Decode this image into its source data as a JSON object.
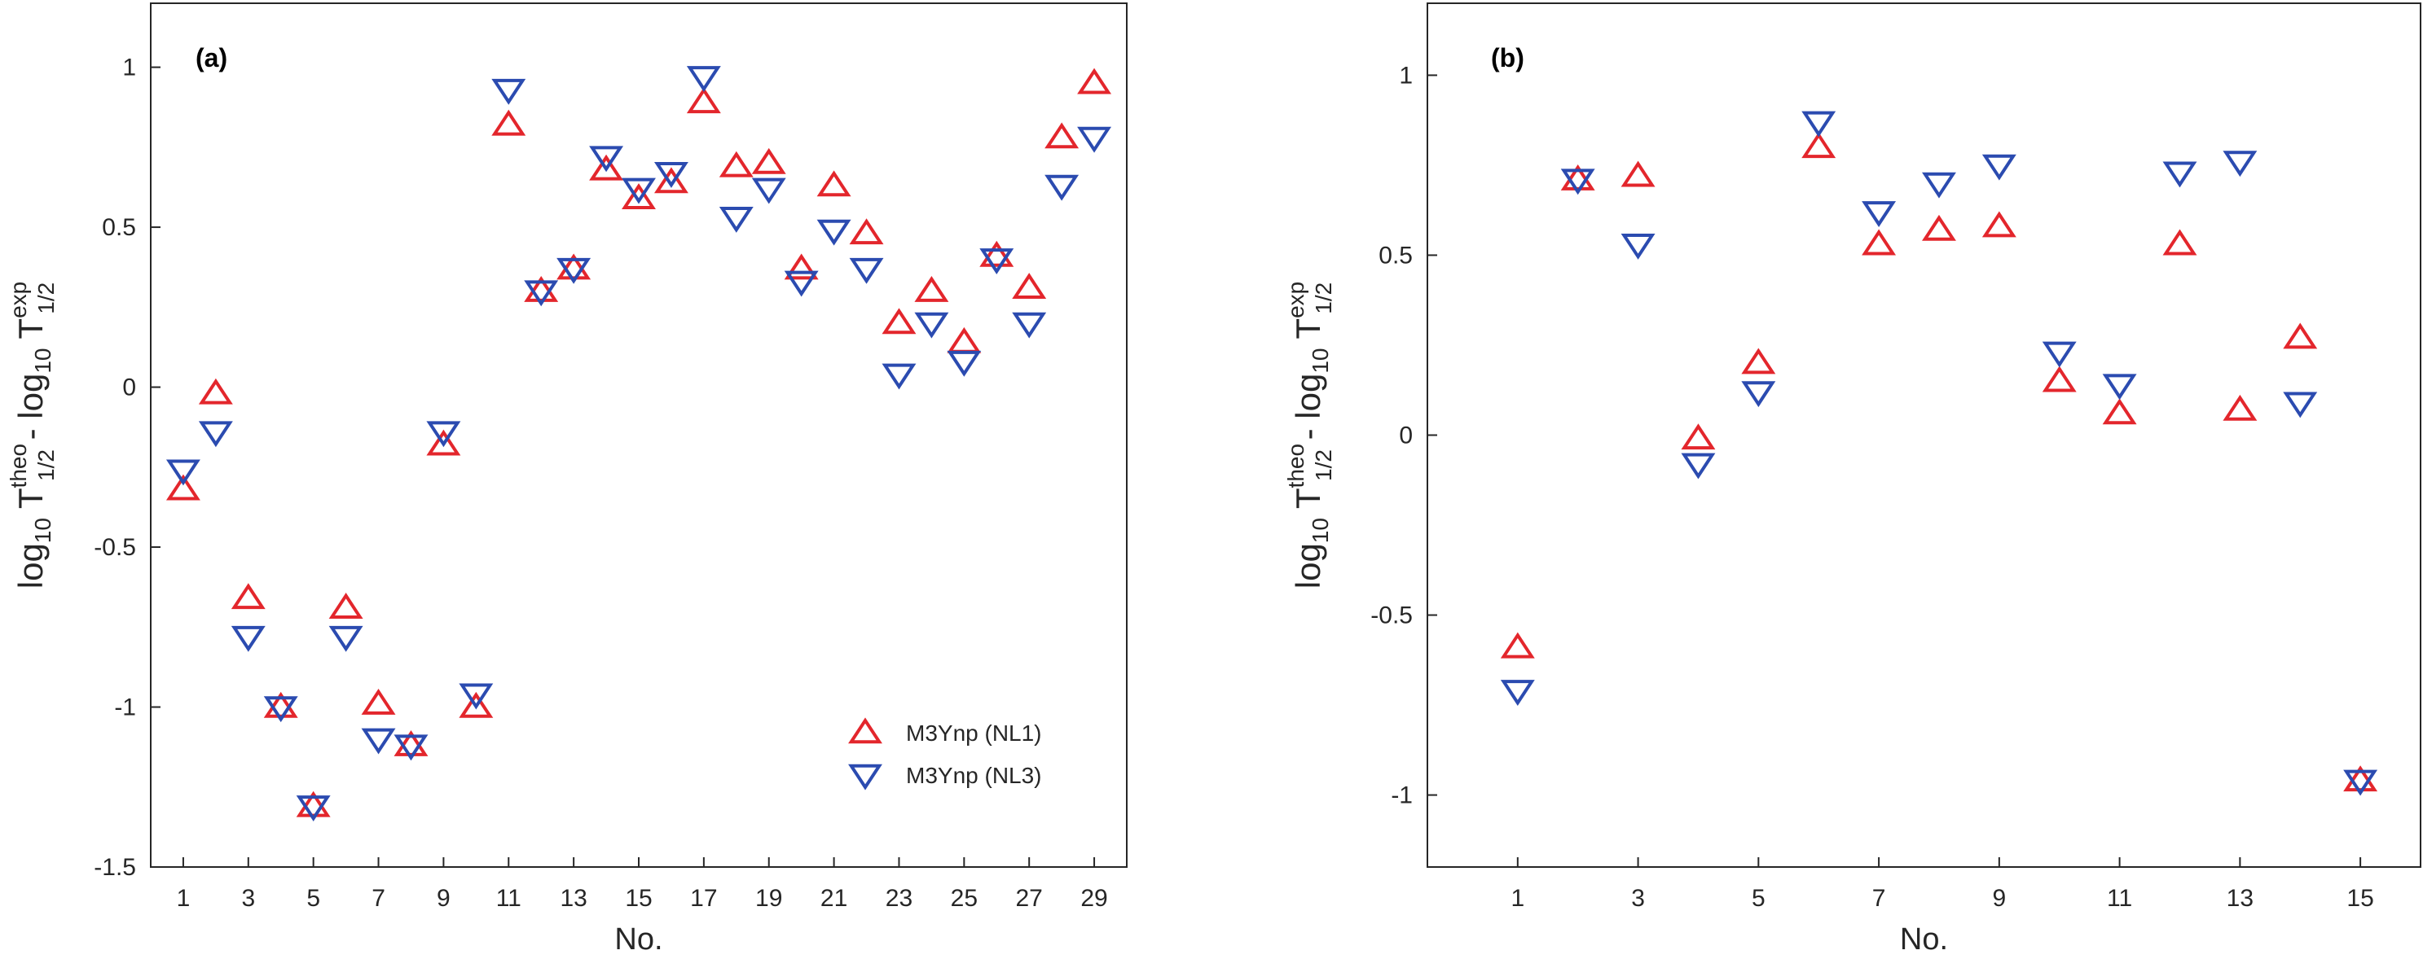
{
  "chart_data": [
    {
      "type": "scatter",
      "panel_label": "(a)",
      "xlabel": "No.",
      "ylabel": {
        "prefix": "log",
        "log_sub": "10",
        "t": "T",
        "sup_theo": "theo",
        "sub": "1/2",
        "minus": " - ",
        "sup_exp": "exp"
      },
      "xlim": [
        0,
        30
      ],
      "ylim": [
        -1.5,
        1.2
      ],
      "xticks": [
        1,
        3,
        5,
        7,
        9,
        11,
        13,
        15,
        17,
        19,
        21,
        23,
        25,
        27,
        29
      ],
      "yticks": [
        -1.5,
        -1,
        -0.5,
        0,
        0.5,
        1
      ],
      "ytick_labels": [
        "-1.5",
        "-1",
        "-0.5",
        "0",
        "0.5",
        "1"
      ],
      "legend": {
        "location": "bottom-right",
        "entries": [
          "M3Ynp (NL1)",
          "M3Ynp (NL3)"
        ]
      },
      "series": [
        {
          "name": "M3Ynp (NL1)",
          "marker": "triangle-up",
          "color": "#e3262c",
          "x": [
            1,
            2,
            3,
            4,
            5,
            6,
            7,
            8,
            9,
            10,
            11,
            12,
            13,
            14,
            15,
            16,
            17,
            18,
            19,
            20,
            21,
            22,
            23,
            24,
            25,
            26,
            27,
            28,
            29
          ],
          "y": [
            -0.32,
            -0.02,
            -0.66,
            -1.0,
            -1.31,
            -0.69,
            -0.99,
            -1.12,
            -0.18,
            -1.0,
            0.82,
            0.3,
            0.37,
            0.68,
            0.59,
            0.64,
            0.89,
            0.69,
            0.7,
            0.37,
            0.63,
            0.48,
            0.2,
            0.3,
            0.14,
            0.41,
            0.31,
            0.78,
            0.95
          ]
        },
        {
          "name": "M3Ynp (NL3)",
          "marker": "triangle-down",
          "color": "#2b4bb0",
          "x": [
            1,
            2,
            3,
            4,
            5,
            6,
            7,
            8,
            9,
            10,
            11,
            12,
            13,
            14,
            15,
            16,
            17,
            18,
            19,
            20,
            21,
            22,
            23,
            24,
            25,
            26,
            27,
            28,
            29
          ],
          "y": [
            -0.26,
            -0.14,
            -0.78,
            -1.0,
            -1.31,
            -0.78,
            -1.1,
            -1.12,
            -0.14,
            -0.96,
            0.93,
            0.3,
            0.37,
            0.72,
            0.62,
            0.67,
            0.97,
            0.53,
            0.62,
            0.33,
            0.49,
            0.37,
            0.04,
            0.2,
            0.08,
            0.4,
            0.2,
            0.63,
            0.78
          ]
        }
      ]
    },
    {
      "type": "scatter",
      "panel_label": "(b)",
      "xlabel": "No.",
      "ylabel": {
        "prefix": "log",
        "log_sub": "10",
        "t": "T",
        "sup_theo": "theo",
        "sub": "1/2",
        "minus": " - ",
        "sup_exp": "exp"
      },
      "xlim": [
        -0.5,
        16
      ],
      "ylim": [
        -1.2,
        1.2
      ],
      "xticks": [
        1,
        3,
        5,
        7,
        9,
        11,
        13,
        15
      ],
      "yticks": [
        -1,
        -0.5,
        0,
        0.5,
        1
      ],
      "ytick_labels": [
        "-1",
        "-0.5",
        "0",
        "0.5",
        "1"
      ],
      "series": [
        {
          "name": "M3Ynp (NL1)",
          "marker": "triangle-up",
          "color": "#e3262c",
          "x": [
            1,
            2,
            3,
            4,
            5,
            6,
            7,
            8,
            9,
            10,
            11,
            12,
            13,
            14,
            15
          ],
          "y": [
            -0.59,
            0.71,
            0.72,
            -0.01,
            0.2,
            0.8,
            0.53,
            0.57,
            0.58,
            0.15,
            0.06,
            0.53,
            0.07,
            0.27,
            -0.96
          ]
        },
        {
          "name": "M3Ynp (NL3)",
          "marker": "triangle-down",
          "color": "#2b4bb0",
          "x": [
            1,
            2,
            3,
            4,
            5,
            6,
            7,
            8,
            9,
            10,
            11,
            12,
            13,
            14,
            15
          ],
          "y": [
            -0.71,
            0.71,
            0.53,
            -0.08,
            0.12,
            0.87,
            0.62,
            0.7,
            0.75,
            0.23,
            0.14,
            0.73,
            0.76,
            0.09,
            -0.96
          ]
        }
      ]
    }
  ]
}
